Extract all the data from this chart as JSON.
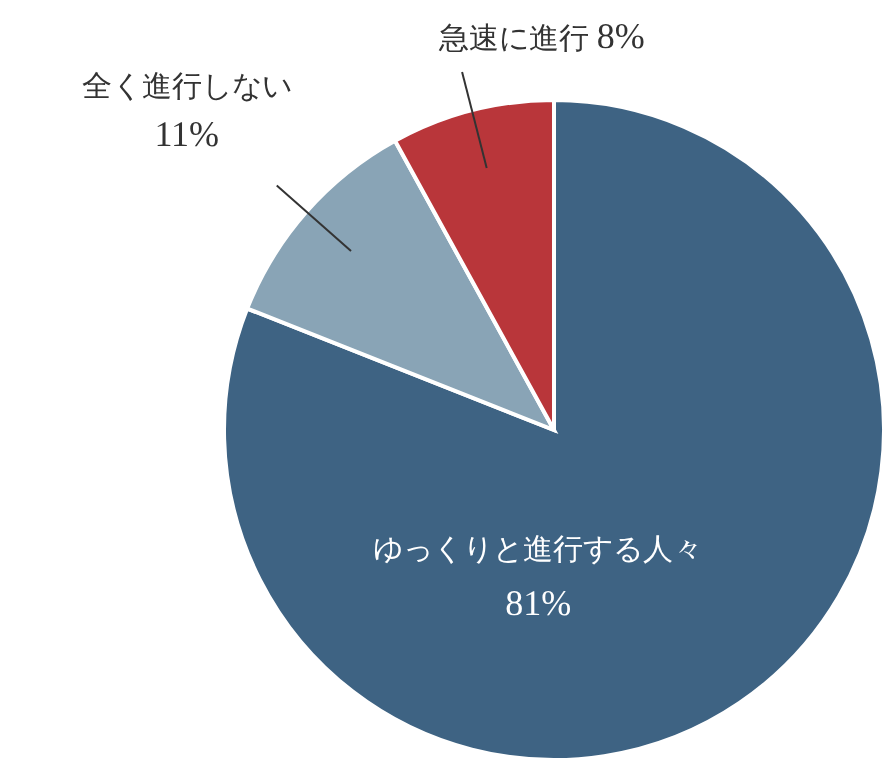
{
  "chart_data": {
    "type": "pie",
    "categories": [
      "ゆっくりと進行する人々",
      "全く進行しない",
      "急速に進行"
    ],
    "values": [
      81,
      11,
      8
    ],
    "colors": [
      "#3e6383",
      "#89a4b6",
      "#b9363a"
    ],
    "value_labels": [
      "81%",
      "11%",
      "8%"
    ]
  }
}
